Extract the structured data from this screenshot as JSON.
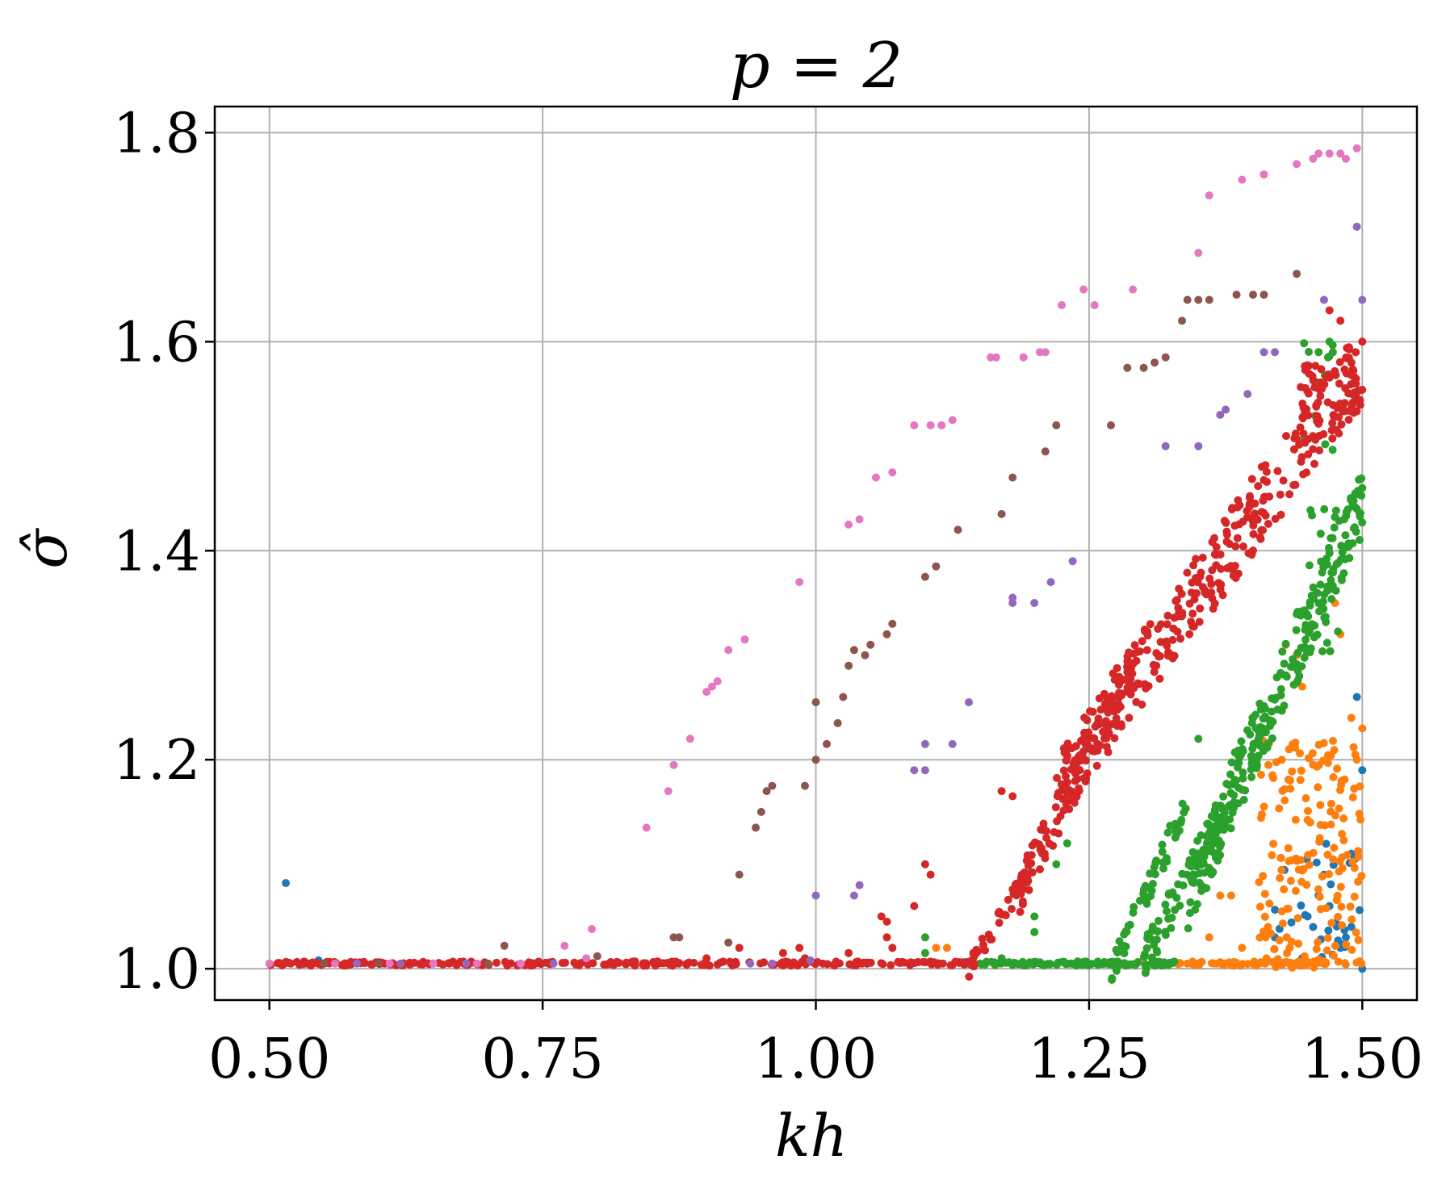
{
  "chart_data": {
    "type": "scatter",
    "title": "p = 2",
    "xlabel": "kh",
    "ylabel": "σ̂",
    "xlim": [
      0.45,
      1.55
    ],
    "ylim": [
      0.97,
      1.825
    ],
    "xticks": [
      "0.50",
      "0.75",
      "1.00",
      "1.25",
      "1.50"
    ],
    "yticks": [
      "1.0",
      "1.2",
      "1.4",
      "1.6",
      "1.8"
    ],
    "grid": true,
    "series": [
      {
        "color": "#1f77b4",
        "points": [
          [
            0.515,
            1.082
          ],
          [
            0.545,
            1.008
          ],
          [
            1.14,
            1.005
          ],
          [
            1.42,
            1.03
          ],
          [
            1.45,
            1.05
          ],
          [
            1.46,
            1.07
          ],
          [
            1.47,
            1.06
          ],
          [
            1.48,
            1.02
          ],
          [
            1.49,
            1.11
          ],
          [
            1.495,
            1.26
          ],
          [
            1.5,
            1.19
          ],
          [
            1.49,
            1.04
          ],
          [
            1.5,
            1.0
          ],
          [
            1.445,
            1.01
          ],
          [
            1.455,
            1.04
          ],
          [
            1.465,
            1.09
          ],
          [
            1.485,
            1.03
          ]
        ],
        "bands": [
          {
            "x": [
              1.41,
              1.5
            ],
            "y": [
              1.0,
              1.12
            ],
            "n": 25
          }
        ]
      },
      {
        "color": "#ff7f0e",
        "points": [
          [
            1.11,
            1.02
          ],
          [
            1.12,
            1.02
          ],
          [
            1.3,
            1.01
          ],
          [
            1.34,
            1.005
          ],
          [
            1.36,
            1.03
          ],
          [
            1.37,
            1.07
          ],
          [
            1.38,
            1.07
          ],
          [
            1.39,
            1.02
          ],
          [
            1.43,
            1.31
          ],
          [
            1.44,
            1.3
          ],
          [
            1.445,
            1.27
          ],
          [
            1.475,
            1.35
          ],
          [
            1.48,
            1.32
          ],
          [
            1.49,
            1.24
          ],
          [
            1.5,
            1.23
          ],
          [
            1.495,
            1.2
          ]
        ],
        "bands": [
          {
            "x": [
              1.33,
              1.5
            ],
            "y": [
              1.003,
              1.007
            ],
            "n": 60
          },
          {
            "x": [
              1.405,
              1.5
            ],
            "y": [
              1.0,
              1.22
            ],
            "n": 170
          }
        ]
      },
      {
        "color": "#2ca02c",
        "points": [
          [
            1.1,
            1.03
          ],
          [
            1.1,
            1.015
          ],
          [
            1.17,
            1.01
          ],
          [
            1.2,
            1.035
          ],
          [
            1.2,
            1.05
          ],
          [
            1.22,
            1.1
          ],
          [
            1.23,
            1.12
          ],
          [
            1.35,
            1.22
          ],
          [
            1.46,
            1.59
          ],
          [
            1.47,
            1.6
          ],
          [
            1.49,
            1.55
          ],
          [
            1.5,
            1.46
          ],
          [
            1.495,
            1.44
          ]
        ],
        "bands": [
          {
            "x": [
              1.15,
              1.33
            ],
            "y": [
              1.003,
              1.007
            ],
            "n": 120
          },
          {
            "x": [
              1.27,
              1.34
            ],
            "y": [
              1.0,
              1.16
            ],
            "n": 55,
            "trend": true
          },
          {
            "x": [
              1.3,
              1.41
            ],
            "y": [
              1.01,
              1.22
            ],
            "n": 110,
            "trend": true
          },
          {
            "x": [
              1.34,
              1.5
            ],
            "y": [
              1.07,
              1.45
            ],
            "n": 240,
            "trend": true
          },
          {
            "x": [
              1.44,
              1.48
            ],
            "y": [
              1.3,
              1.6
            ],
            "n": 30,
            "trend": false
          }
        ]
      },
      {
        "color": "#d62728",
        "points": [
          [
            0.985,
            1.02
          ],
          [
            0.99,
            1.01
          ],
          [
            1.06,
            1.05
          ],
          [
            1.065,
            1.045
          ],
          [
            1.065,
            1.03
          ],
          [
            1.07,
            1.02
          ],
          [
            1.09,
            1.06
          ],
          [
            1.1,
            1.1
          ],
          [
            1.105,
            1.09
          ],
          [
            0.9,
            1.01
          ],
          [
            0.93,
            1.02
          ],
          [
            0.97,
            1.015
          ],
          [
            1.03,
            1.015
          ],
          [
            1.17,
            1.17
          ],
          [
            1.18,
            1.165
          ],
          [
            1.47,
            1.63
          ],
          [
            1.48,
            1.62
          ],
          [
            1.49,
            1.58
          ],
          [
            1.5,
            1.6
          ]
        ],
        "bands": [
          {
            "x": [
              0.5,
              1.15
            ],
            "y": [
              1.003,
              1.007
            ],
            "n": 260
          },
          {
            "x": [
              1.14,
              1.2
            ],
            "y": [
              1.0,
              1.1
            ],
            "n": 40,
            "trend": true
          },
          {
            "x": [
              1.18,
              1.29
            ],
            "y": [
              1.06,
              1.29
            ],
            "n": 120,
            "trend": true
          },
          {
            "x": [
              1.22,
              1.5
            ],
            "y": [
              1.17,
              1.58
            ],
            "n": 320,
            "trend": true
          },
          {
            "x": [
              1.44,
              1.5
            ],
            "y": [
              1.52,
              1.58
            ],
            "n": 40,
            "trend": false
          }
        ]
      },
      {
        "color": "#9467bd",
        "points": [
          [
            0.58,
            1.005
          ],
          [
            0.62,
            1.005
          ],
          [
            0.68,
            1.005
          ],
          [
            0.73,
            1.005
          ],
          [
            0.76,
            1.005
          ],
          [
            0.94,
            1.005
          ],
          [
            0.96,
            1.005
          ],
          [
            0.995,
            1.008
          ],
          [
            1.0,
            1.07
          ],
          [
            1.035,
            1.07
          ],
          [
            1.04,
            1.08
          ],
          [
            1.09,
            1.19
          ],
          [
            1.1,
            1.19
          ],
          [
            1.1,
            1.215
          ],
          [
            1.125,
            1.215
          ],
          [
            1.14,
            1.255
          ],
          [
            1.18,
            1.35
          ],
          [
            1.18,
            1.355
          ],
          [
            1.2,
            1.35
          ],
          [
            1.215,
            1.37
          ],
          [
            1.235,
            1.39
          ],
          [
            1.32,
            1.5
          ],
          [
            1.35,
            1.5
          ],
          [
            1.37,
            1.53
          ],
          [
            1.375,
            1.535
          ],
          [
            1.395,
            1.55
          ],
          [
            1.41,
            1.59
          ],
          [
            1.42,
            1.59
          ],
          [
            1.465,
            1.64
          ],
          [
            1.495,
            1.71
          ],
          [
            1.5,
            1.64
          ]
        ]
      },
      {
        "color": "#8c564b",
        "points": [
          [
            0.55,
            1.005
          ],
          [
            0.6,
            1.005
          ],
          [
            0.65,
            1.005
          ],
          [
            0.7,
            1.005
          ],
          [
            0.715,
            1.022
          ],
          [
            0.8,
            1.012
          ],
          [
            0.87,
            1.03
          ],
          [
            0.875,
            1.03
          ],
          [
            0.92,
            1.025
          ],
          [
            0.93,
            1.09
          ],
          [
            0.945,
            1.135
          ],
          [
            0.95,
            1.15
          ],
          [
            0.955,
            1.17
          ],
          [
            0.96,
            1.175
          ],
          [
            0.99,
            1.175
          ],
          [
            1.0,
            1.2
          ],
          [
            1.0,
            1.255
          ],
          [
            1.01,
            1.215
          ],
          [
            1.02,
            1.235
          ],
          [
            1.025,
            1.26
          ],
          [
            1.03,
            1.29
          ],
          [
            1.035,
            1.305
          ],
          [
            1.045,
            1.3
          ],
          [
            1.05,
            1.31
          ],
          [
            1.065,
            1.32
          ],
          [
            1.07,
            1.33
          ],
          [
            1.1,
            1.375
          ],
          [
            1.11,
            1.385
          ],
          [
            1.13,
            1.42
          ],
          [
            1.17,
            1.435
          ],
          [
            1.18,
            1.47
          ],
          [
            1.21,
            1.495
          ],
          [
            1.22,
            1.52
          ],
          [
            1.27,
            1.52
          ],
          [
            1.285,
            1.575
          ],
          [
            1.3,
            1.575
          ],
          [
            1.31,
            1.58
          ],
          [
            1.32,
            1.585
          ],
          [
            1.335,
            1.62
          ],
          [
            1.34,
            1.64
          ],
          [
            1.35,
            1.64
          ],
          [
            1.36,
            1.64
          ],
          [
            1.385,
            1.645
          ],
          [
            1.4,
            1.645
          ],
          [
            1.41,
            1.645
          ],
          [
            1.44,
            1.665
          ]
        ]
      },
      {
        "color": "#e377c2",
        "points": [
          [
            0.5,
            1.005
          ],
          [
            0.56,
            1.005
          ],
          [
            0.61,
            1.005
          ],
          [
            0.65,
            1.005
          ],
          [
            0.69,
            1.005
          ],
          [
            0.73,
            1.005
          ],
          [
            0.77,
            1.022
          ],
          [
            0.795,
            1.038
          ],
          [
            0.79,
            1.01
          ],
          [
            0.845,
            1.135
          ],
          [
            0.865,
            1.17
          ],
          [
            0.87,
            1.195
          ],
          [
            0.885,
            1.22
          ],
          [
            0.9,
            1.265
          ],
          [
            0.905,
            1.27
          ],
          [
            0.91,
            1.275
          ],
          [
            0.92,
            1.305
          ],
          [
            0.935,
            1.315
          ],
          [
            0.985,
            1.37
          ],
          [
            1.03,
            1.425
          ],
          [
            1.04,
            1.43
          ],
          [
            1.055,
            1.47
          ],
          [
            1.07,
            1.475
          ],
          [
            1.09,
            1.52
          ],
          [
            1.105,
            1.52
          ],
          [
            1.115,
            1.52
          ],
          [
            1.125,
            1.525
          ],
          [
            1.16,
            1.585
          ],
          [
            1.165,
            1.585
          ],
          [
            1.19,
            1.585
          ],
          [
            1.205,
            1.59
          ],
          [
            1.21,
            1.59
          ],
          [
            1.225,
            1.635
          ],
          [
            1.245,
            1.65
          ],
          [
            1.255,
            1.635
          ],
          [
            1.29,
            1.65
          ],
          [
            1.35,
            1.685
          ],
          [
            1.36,
            1.74
          ],
          [
            1.39,
            1.755
          ],
          [
            1.41,
            1.76
          ],
          [
            1.44,
            1.77
          ],
          [
            1.455,
            1.775
          ],
          [
            1.46,
            1.78
          ],
          [
            1.47,
            1.78
          ],
          [
            1.48,
            1.78
          ],
          [
            1.485,
            1.775
          ],
          [
            1.495,
            1.785
          ]
        ]
      }
    ]
  }
}
